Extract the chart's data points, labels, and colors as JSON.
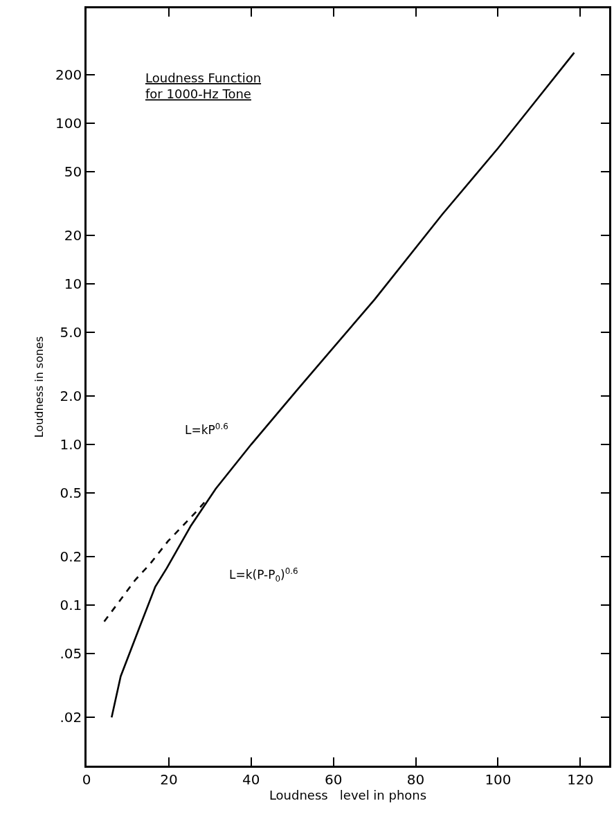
{
  "chart_data": {
    "type": "line",
    "title": "Loudness Function\nfor 1000-Hz Tone",
    "xlabel": "Loudness   level in phons",
    "ylabel": "Loudness in sones",
    "log": "y",
    "xlim": [
      0,
      127
    ],
    "xticks": [
      0,
      20,
      40,
      60,
      80,
      100,
      120
    ],
    "ylim": [
      0.01,
      520
    ],
    "yticks": [
      {
        "value": 0.02,
        "label": ".02"
      },
      {
        "value": 0.05,
        "label": ".05"
      },
      {
        "value": 0.1,
        "label": "0.1"
      },
      {
        "value": 0.2,
        "label": "0.2"
      },
      {
        "value": 0.5,
        "label": "0.5"
      },
      {
        "value": 1,
        "label": "1.0"
      },
      {
        "value": 2,
        "label": "2.0"
      },
      {
        "value": 5,
        "label": "5.0"
      },
      10,
      20,
      50,
      100,
      200
    ],
    "marker": "none",
    "series": [
      {
        "color": "#000000",
        "line_style": "solid",
        "x": [
          6.1,
          8.3,
          12.9,
          16.7,
          19.5,
          25.3,
          31.4,
          40,
          51.2,
          70,
          86.4,
          100,
          118.5
        ],
        "values": [
          0.02,
          0.036,
          0.073,
          0.13,
          0.17,
          0.31,
          0.53,
          1.0,
          2.19,
          8,
          27,
          70,
          275
        ]
      },
      {
        "color": "#000000",
        "line_style": "dashed",
        "x": [
          4.3,
          11.9,
          15.4,
          19.8,
          27,
          29.4
        ],
        "values": [
          0.079,
          0.144,
          0.18,
          0.25,
          0.39,
          0.46
        ]
      }
    ],
    "annotations": [
      "L=kP$^{0.6}$",
      "L=k(P-P$_{0}$)$^{0.6}$"
    ]
  }
}
